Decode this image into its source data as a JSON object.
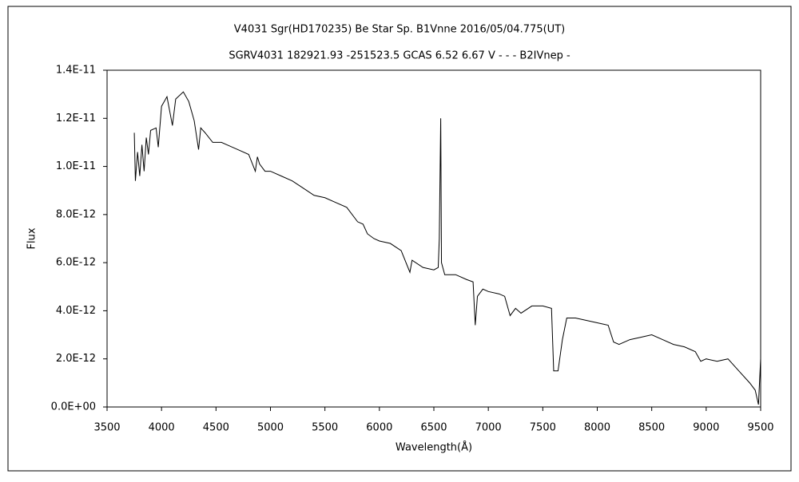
{
  "chart_data": {
    "type": "line",
    "title": "V4031 Sgr(HD170235)   Be Star   Sp. B1Vnne   2016/05/04.775(UT)",
    "subtitle": "SGRV4031 182921.93 -251523.5 GCAS 6.52 6.67 V - - -  B2IVnep -",
    "x_label": "Wavelength(Å)",
    "y_label": "Flux",
    "xlim": [
      3500,
      9500
    ],
    "xticks": [
      3500,
      4000,
      4500,
      5000,
      5500,
      6000,
      6500,
      7000,
      7500,
      8000,
      8500,
      9000,
      9500
    ],
    "ylim": [
      0,
      1.4e-11
    ],
    "yticks": [
      {
        "value": 0,
        "label": "0.0E+00"
      },
      {
        "value": 2e-12,
        "label": "2.0E-12"
      },
      {
        "value": 4e-12,
        "label": "4.0E-12"
      },
      {
        "value": 6e-12,
        "label": "6.0E-12"
      },
      {
        "value": 8e-12,
        "label": "8.0E-12"
      },
      {
        "value": 1e-11,
        "label": "1.0E-11"
      },
      {
        "value": 1.2e-11,
        "label": "1.2E-11"
      },
      {
        "value": 1.4e-11,
        "label": "1.4E-11"
      }
    ],
    "grid": false,
    "series": [
      {
        "color": "#000000",
        "x": [
          3750,
          3760,
          3780,
          3800,
          3820,
          3840,
          3860,
          3880,
          3900,
          3950,
          3970,
          4000,
          4050,
          4100,
          4130,
          4200,
          4250,
          4300,
          4340,
          4360,
          4400,
          4470,
          4500,
          4550,
          4600,
          4700,
          4800,
          4861,
          4880,
          4900,
          4950,
          5000,
          5100,
          5200,
          5300,
          5400,
          5500,
          5600,
          5700,
          5800,
          5850,
          5890,
          5950,
          6000,
          6100,
          6200,
          6280,
          6300,
          6400,
          6500,
          6540,
          6550,
          6563,
          6570,
          6600,
          6700,
          6800,
          6860,
          6880,
          6900,
          6950,
          7000,
          7100,
          7150,
          7200,
          7250,
          7300,
          7400,
          7500,
          7580,
          7600,
          7640,
          7680,
          7720,
          7800,
          7900,
          8000,
          8100,
          8150,
          8200,
          8300,
          8400,
          8500,
          8600,
          8700,
          8800,
          8900,
          8950,
          9000,
          9100,
          9200,
          9300,
          9400,
          9450,
          9480,
          9500
        ],
        "values": [
          1.14e-11,
          9.4e-12,
          1.06e-11,
          9.6e-12,
          1.09e-11,
          9.8e-12,
          1.12e-11,
          1.05e-11,
          1.15e-11,
          1.16e-11,
          1.08e-11,
          1.25e-11,
          1.29e-11,
          1.17e-11,
          1.28e-11,
          1.31e-11,
          1.27e-11,
          1.19e-11,
          1.07e-11,
          1.16e-11,
          1.14e-11,
          1.1e-11,
          1.1e-11,
          1.1e-11,
          1.09e-11,
          1.07e-11,
          1.05e-11,
          9.8e-12,
          1.04e-11,
          1.01e-11,
          9.8e-12,
          9.8e-12,
          9.6e-12,
          9.4e-12,
          9.1e-12,
          8.8e-12,
          8.7e-12,
          8.5e-12,
          8.3e-12,
          7.7e-12,
          7.6e-12,
          7.2e-12,
          7e-12,
          6.9e-12,
          6.8e-12,
          6.5e-12,
          5.6e-12,
          6.1e-12,
          5.8e-12,
          5.7e-12,
          5.8e-12,
          7e-12,
          1.2e-11,
          6e-12,
          5.5e-12,
          5.5e-12,
          5.3e-12,
          5.2e-12,
          3.4e-12,
          4.6e-12,
          4.9e-12,
          4.8e-12,
          4.7e-12,
          4.6e-12,
          3.8e-12,
          4.1e-12,
          3.9e-12,
          4.2e-12,
          4.2e-12,
          4.1e-12,
          1.5e-12,
          1.5e-12,
          2.8e-12,
          3.7e-12,
          3.7e-12,
          3.6e-12,
          3.5e-12,
          3.4e-12,
          2.7e-12,
          2.6e-12,
          2.8e-12,
          2.9e-12,
          3e-12,
          2.8e-12,
          2.6e-12,
          2.5e-12,
          2.3e-12,
          1.9e-12,
          2e-12,
          1.9e-12,
          2e-12,
          1.5e-12,
          1e-12,
          7e-13,
          1e-13,
          2e-12
        ]
      }
    ]
  }
}
